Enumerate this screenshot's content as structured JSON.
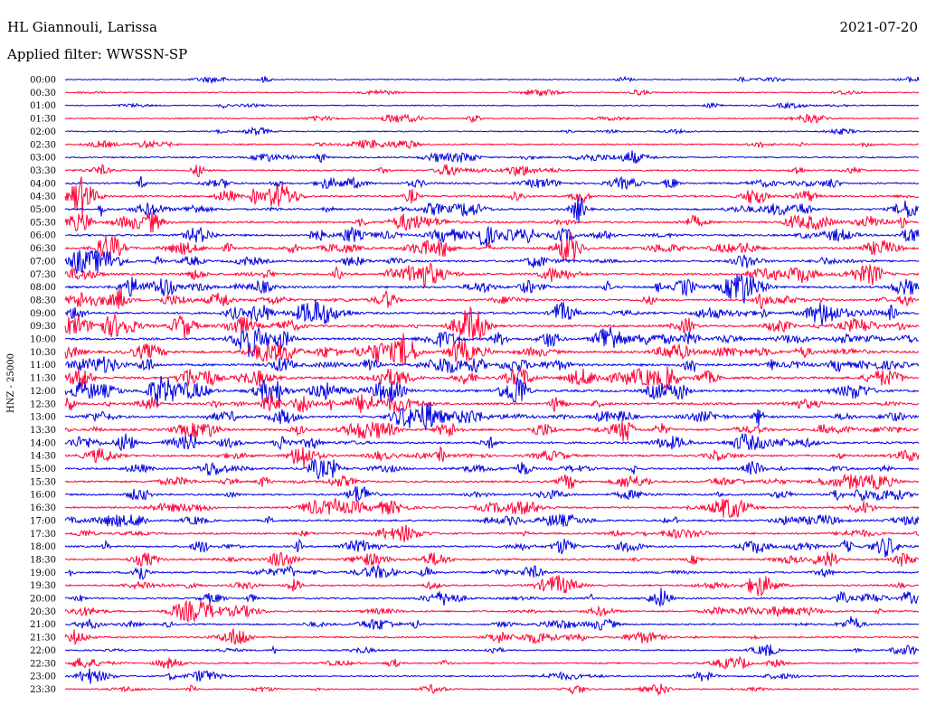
{
  "header": {
    "station": "HL Giannouli, Larissa",
    "date": "2021-07-20",
    "filter": "Applied filter: WWSSN-SP"
  },
  "chart_data": {
    "type": "line",
    "title": "HL Giannouli, Larissa",
    "subtitle": "Applied filter: WWSSN-SP",
    "ylabel": "HNZ - 25000",
    "xlabel": "",
    "colors": [
      "#0000e0",
      "#ff0033"
    ],
    "grid": false,
    "row_labels": [
      "00:00",
      "00:30",
      "01:00",
      "01:30",
      "02:00",
      "02:30",
      "03:00",
      "03:30",
      "04:00",
      "04:30",
      "05:00",
      "05:30",
      "06:00",
      "06:30",
      "07:00",
      "07:30",
      "08:00",
      "08:30",
      "09:00",
      "09:30",
      "10:00",
      "10:30",
      "11:00",
      "11:30",
      "12:00",
      "12:30",
      "13:00",
      "13:30",
      "14:00",
      "14:30",
      "15:00",
      "15:30",
      "16:00",
      "16:30",
      "17:00",
      "17:30",
      "18:00",
      "18:30",
      "19:00",
      "19:30",
      "20:00",
      "20:30",
      "21:00",
      "21:30",
      "22:00",
      "22:30",
      "23:00",
      "23:30"
    ],
    "activity_level": [
      0.12,
      0.14,
      0.16,
      0.16,
      0.18,
      0.28,
      0.32,
      0.38,
      0.52,
      0.58,
      0.62,
      0.65,
      0.66,
      0.66,
      0.7,
      0.72,
      0.72,
      0.72,
      0.74,
      0.78,
      0.82,
      0.84,
      0.86,
      0.84,
      0.84,
      0.8,
      0.76,
      0.72,
      0.7,
      0.66,
      0.6,
      0.58,
      0.56,
      0.54,
      0.54,
      0.56,
      0.56,
      0.56,
      0.5,
      0.46,
      0.5,
      0.46,
      0.44,
      0.4,
      0.34,
      0.34,
      0.32,
      0.3
    ]
  }
}
